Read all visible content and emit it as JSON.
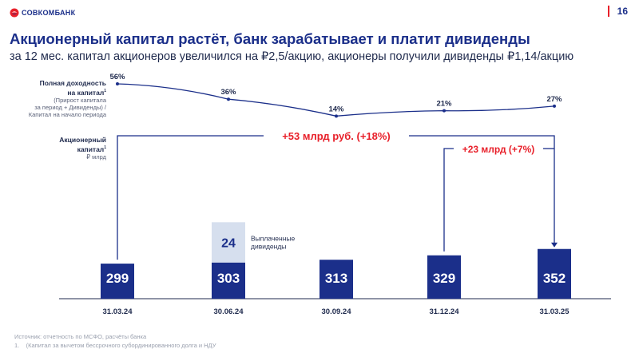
{
  "header": {
    "logo_text": "СОВКОМБАНК",
    "page_number": "16",
    "title": "Акционерный капитал растёт, банк зарабатывает и платит дивиденды",
    "subtitle": "за 12 мес. капитал акционеров увеличился на ₽2,5/акцию, акционеры получили дивиденды ₽1,14/акцию"
  },
  "labels": {
    "yield_title_1": "Полная доходность",
    "yield_title_2": "на капитал",
    "yield_sup": "1",
    "yield_desc_1": "(Прирост капитала",
    "yield_desc_2": "за период + Дивиденды) /",
    "yield_desc_3": "Капитал на начало периода",
    "equity_title_1": "Акционерный",
    "equity_title_2": "капитал",
    "equity_sup": "1",
    "equity_unit": "₽ млрд"
  },
  "chart_data": {
    "type": "bar",
    "categories": [
      "31.03.24",
      "30.06.24",
      "30.09.24",
      "31.12.24",
      "31.03.25"
    ],
    "series": [
      {
        "values": [
          299,
          303,
          313,
          329,
          352
        ]
      },
      {
        "name": "Выплаченные дивиденды",
        "values": [
          0,
          24,
          0,
          0,
          0
        ]
      }
    ],
    "line": {
      "values": [
        56,
        36,
        14,
        21,
        27
      ],
      "labels": [
        "56%",
        "36%",
        "14%",
        "21%",
        "27%"
      ]
    },
    "annotations": [
      {
        "text": "+53 млрд руб. (+18%)",
        "from": "31.03.24",
        "to": "31.03.25"
      },
      {
        "text": "+23 млрд (+7%)",
        "from": "31.12.24",
        "to": "31.03.25"
      }
    ]
  },
  "source": {
    "line1": "Источник: отчетность по МСФО, расчёты банка",
    "line2_num": "1.",
    "line2": "(Капитал за вычетом бессрочного субординированного долга и НДУ"
  },
  "colors": {
    "bar": "#1b2f8a",
    "dividend": "#d6dfee",
    "accent": "#e8202a",
    "line": "#1b2f8a",
    "axis": "#1f2a4d"
  }
}
